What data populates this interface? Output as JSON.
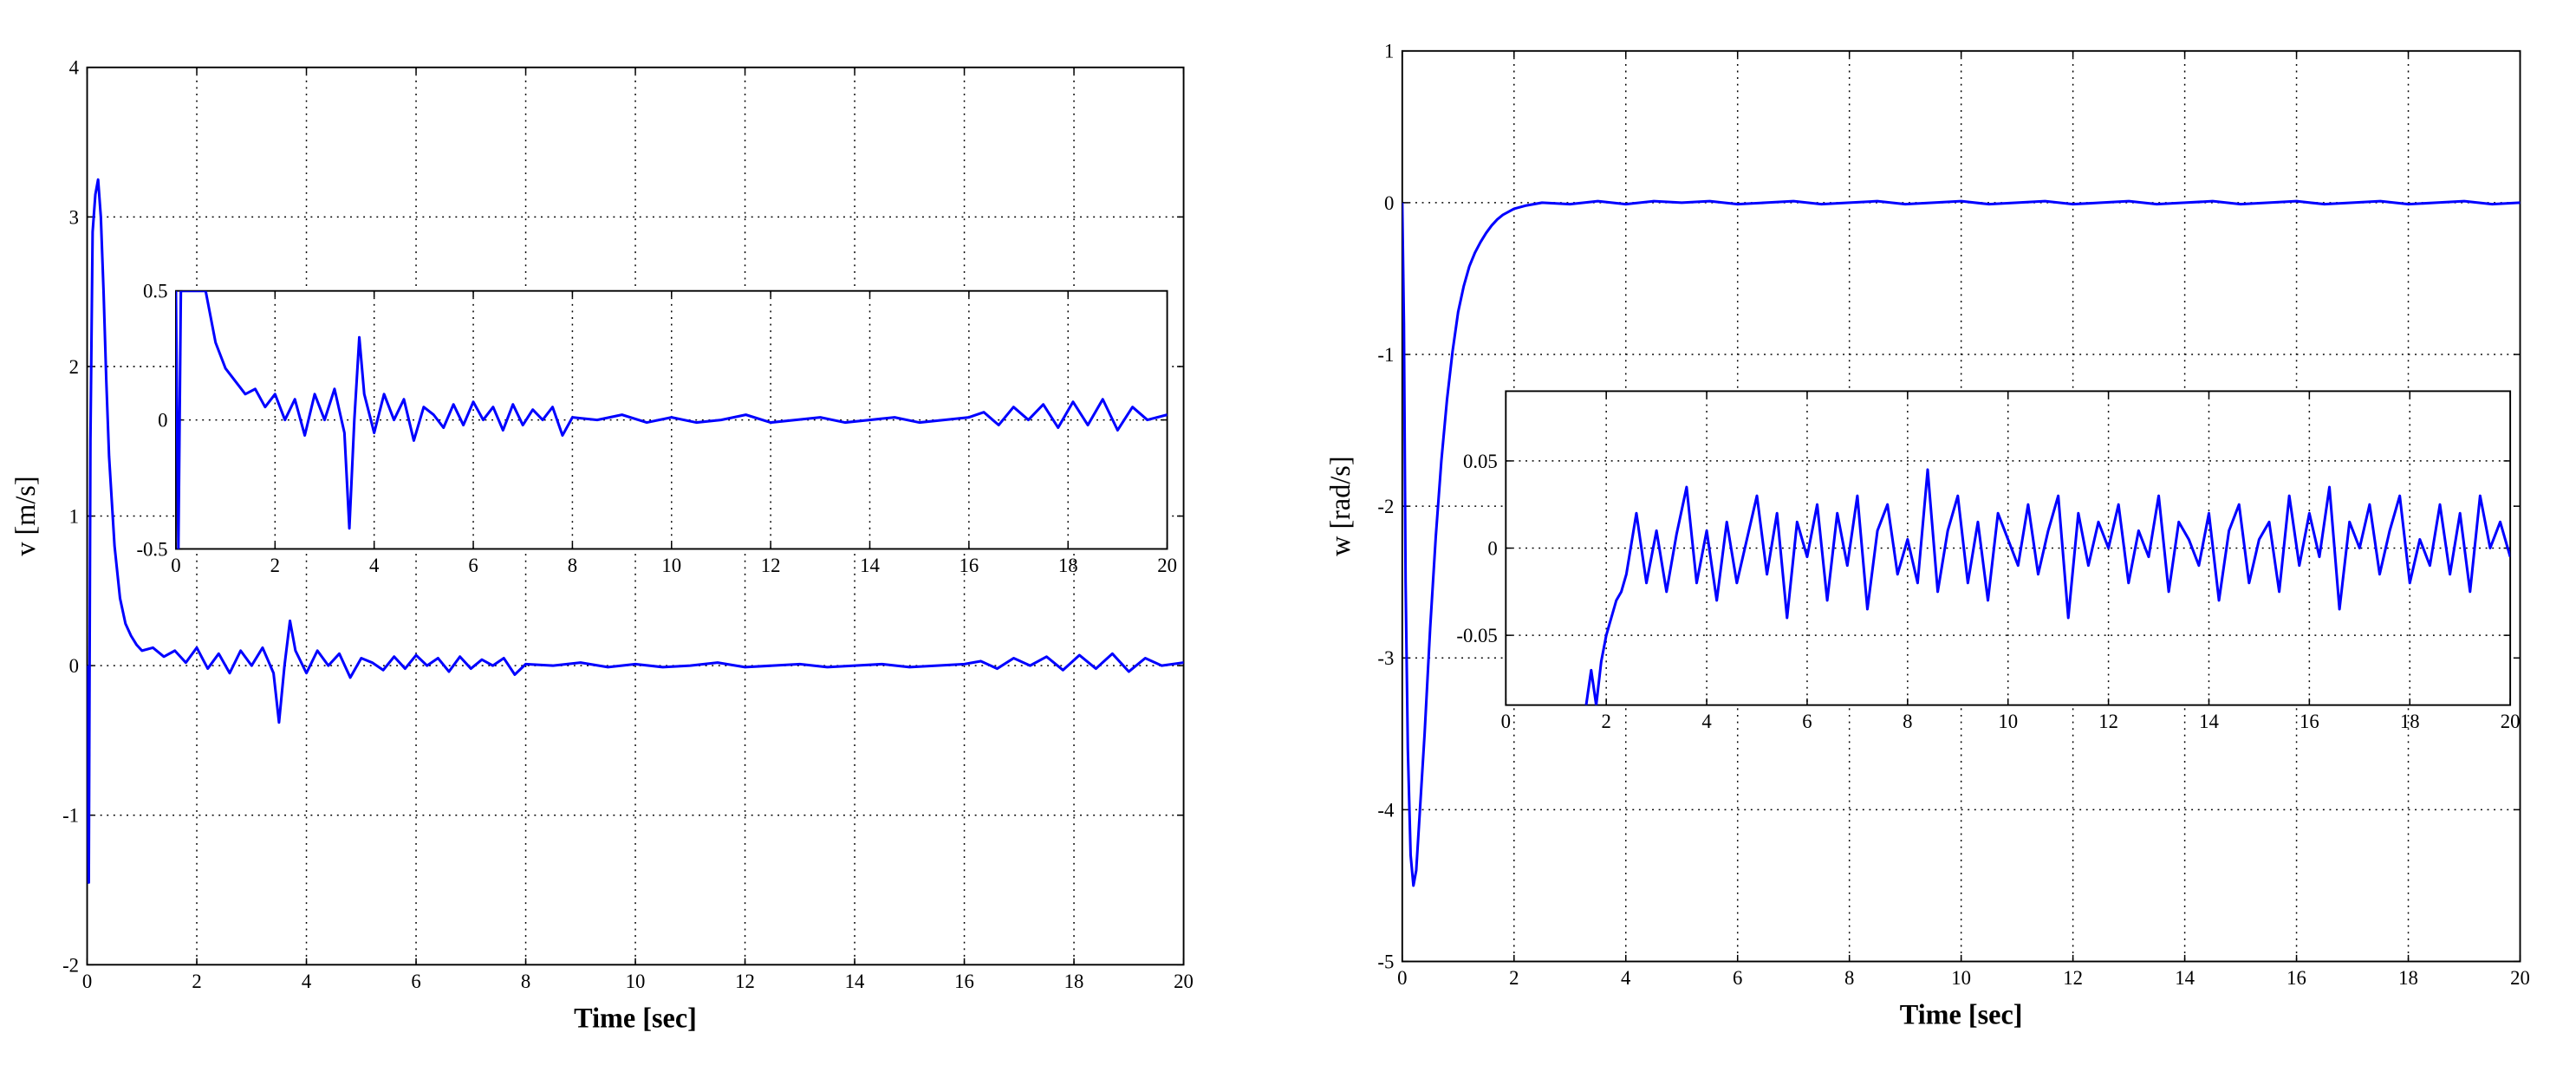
{
  "chart_data": [
    {
      "type": "line",
      "xlabel": "Time [sec]",
      "ylabel": "v [m/s]",
      "xlim": [
        0,
        20
      ],
      "ylim": [
        -2,
        4
      ],
      "xticks": [
        "0",
        "2",
        "4",
        "6",
        "8",
        "10",
        "12",
        "14",
        "16",
        "18",
        "20"
      ],
      "yticks": [
        "-2",
        "-1",
        "0",
        "1",
        "2",
        "3",
        "4"
      ],
      "grid": true,
      "line_color": "#0000ff",
      "series": [
        {
          "x": [
            0,
            0.03,
            0.06,
            0.1,
            0.15,
            0.2,
            0.25,
            0.3,
            0.35,
            0.4,
            0.5,
            0.6,
            0.7,
            0.8,
            0.9,
            1.0,
            1.2,
            1.4,
            1.6,
            1.8,
            2.0,
            2.2,
            2.4,
            2.6,
            2.8,
            3.0,
            3.2,
            3.4,
            3.5,
            3.6,
            3.7,
            3.8,
            4.0,
            4.2,
            4.4,
            4.6,
            4.8,
            5.0,
            5.2,
            5.4,
            5.6,
            5.8,
            6.0,
            6.2,
            6.4,
            6.6,
            6.8,
            7.0,
            7.2,
            7.4,
            7.6,
            7.8,
            8.0,
            8.5,
            9.0,
            9.5,
            10.0,
            10.5,
            11.0,
            11.5,
            12.0,
            12.5,
            13.0,
            13.5,
            14.0,
            14.5,
            15.0,
            15.5,
            16.0,
            16.3,
            16.6,
            16.9,
            17.2,
            17.5,
            17.8,
            18.1,
            18.4,
            18.7,
            19.0,
            19.3,
            19.6,
            20.0
          ],
          "y": [
            0.0,
            -1.45,
            1.5,
            2.9,
            3.15,
            3.25,
            3.0,
            2.5,
            1.9,
            1.4,
            0.8,
            0.45,
            0.28,
            0.2,
            0.14,
            0.1,
            0.12,
            0.06,
            0.1,
            0.02,
            0.12,
            -0.02,
            0.08,
            -0.05,
            0.1,
            0.0,
            0.12,
            -0.05,
            -0.38,
            0.0,
            0.3,
            0.1,
            -0.05,
            0.1,
            0.0,
            0.08,
            -0.08,
            0.05,
            0.02,
            -0.03,
            0.06,
            -0.02,
            0.07,
            0.0,
            0.05,
            -0.04,
            0.06,
            -0.02,
            0.04,
            0.0,
            0.05,
            -0.06,
            0.01,
            0.0,
            0.02,
            -0.01,
            0.01,
            -0.01,
            0.0,
            0.02,
            -0.01,
            0.0,
            0.01,
            -0.01,
            0.0,
            0.01,
            -0.01,
            0.0,
            0.01,
            0.03,
            -0.02,
            0.05,
            0.0,
            0.06,
            -0.03,
            0.07,
            -0.02,
            0.08,
            -0.04,
            0.05,
            0.0,
            0.02
          ]
        }
      ],
      "inset": {
        "xlim": [
          0,
          20
        ],
        "ylim": [
          -0.5,
          0.5
        ],
        "xticks": [
          "0",
          "2",
          "4",
          "6",
          "8",
          "10",
          "12",
          "14",
          "16",
          "18",
          "20"
        ],
        "yticks": [
          "-0.5",
          "0",
          "0.5"
        ],
        "grid": true,
        "x": [
          0,
          0.05,
          0.1,
          0.6,
          0.8,
          1.0,
          1.2,
          1.4,
          1.6,
          1.8,
          2.0,
          2.2,
          2.4,
          2.6,
          2.8,
          3.0,
          3.2,
          3.4,
          3.5,
          3.6,
          3.7,
          3.8,
          4.0,
          4.2,
          4.4,
          4.6,
          4.8,
          5.0,
          5.2,
          5.4,
          5.6,
          5.8,
          6.0,
          6.2,
          6.4,
          6.6,
          6.8,
          7.0,
          7.2,
          7.4,
          7.6,
          7.8,
          8.0,
          8.5,
          9.0,
          9.5,
          10.0,
          10.5,
          11.0,
          11.5,
          12.0,
          12.5,
          13.0,
          13.5,
          14.0,
          14.5,
          15.0,
          15.5,
          16.0,
          16.3,
          16.6,
          16.9,
          17.2,
          17.5,
          17.8,
          18.1,
          18.4,
          18.7,
          19.0,
          19.3,
          19.6,
          20.0
        ],
        "y": [
          0.5,
          -0.5,
          0.5,
          0.5,
          0.3,
          0.2,
          0.15,
          0.1,
          0.12,
          0.05,
          0.1,
          0.0,
          0.08,
          -0.06,
          0.1,
          0.0,
          0.12,
          -0.05,
          -0.42,
          0.0,
          0.32,
          0.1,
          -0.05,
          0.1,
          0.0,
          0.08,
          -0.08,
          0.05,
          0.02,
          -0.03,
          0.06,
          -0.02,
          0.07,
          0.0,
          0.05,
          -0.04,
          0.06,
          -0.02,
          0.04,
          0.0,
          0.05,
          -0.06,
          0.01,
          0.0,
          0.02,
          -0.01,
          0.01,
          -0.01,
          0.0,
          0.02,
          -0.01,
          0.0,
          0.01,
          -0.01,
          0.0,
          0.01,
          -0.01,
          0.0,
          0.01,
          0.03,
          -0.02,
          0.05,
          0.0,
          0.06,
          -0.03,
          0.07,
          -0.02,
          0.08,
          -0.04,
          0.05,
          0.0,
          0.02
        ]
      }
    },
    {
      "type": "line",
      "xlabel": "Time [sec]",
      "ylabel": "w [rad/s]",
      "xlim": [
        0,
        20
      ],
      "ylim": [
        -5,
        1
      ],
      "xticks": [
        "0",
        "2",
        "4",
        "6",
        "8",
        "10",
        "12",
        "14",
        "16",
        "18",
        "20"
      ],
      "yticks": [
        "-5",
        "-4",
        "-3",
        "-2",
        "-1",
        "0",
        "1"
      ],
      "grid": true,
      "line_color": "#0000ff",
      "series": [
        {
          "x": [
            0,
            0.03,
            0.06,
            0.1,
            0.15,
            0.2,
            0.25,
            0.3,
            0.4,
            0.5,
            0.6,
            0.7,
            0.8,
            0.9,
            1.0,
            1.1,
            1.2,
            1.3,
            1.4,
            1.5,
            1.6,
            1.7,
            1.8,
            1.9,
            2.0,
            2.2,
            2.5,
            3.0,
            3.5,
            4.0,
            4.5,
            5.0,
            5.5,
            6.0,
            6.5,
            7.0,
            7.5,
            8.0,
            8.5,
            9.0,
            9.5,
            10.0,
            10.5,
            11.0,
            11.5,
            12.0,
            12.5,
            13.0,
            13.5,
            14.0,
            14.5,
            15.0,
            15.5,
            16.0,
            16.5,
            17.0,
            17.5,
            18.0,
            18.5,
            19.0,
            19.5,
            20.0
          ],
          "y": [
            0.0,
            -0.8,
            -2.5,
            -3.6,
            -4.3,
            -4.5,
            -4.4,
            -4.1,
            -3.5,
            -2.8,
            -2.2,
            -1.7,
            -1.3,
            -0.98,
            -0.72,
            -0.55,
            -0.42,
            -0.33,
            -0.26,
            -0.2,
            -0.15,
            -0.11,
            -0.08,
            -0.06,
            -0.04,
            -0.02,
            0.0,
            -0.01,
            0.01,
            -0.01,
            0.01,
            0.0,
            0.01,
            -0.01,
            0.0,
            0.01,
            -0.01,
            0.0,
            0.01,
            -0.01,
            0.0,
            0.01,
            -0.01,
            0.0,
            0.01,
            -0.01,
            0.0,
            0.01,
            -0.01,
            0.0,
            0.01,
            -0.01,
            0.0,
            0.01,
            -0.01,
            0.0,
            0.01,
            -0.01,
            0.0,
            0.01,
            -0.01,
            0.0
          ]
        }
      ],
      "inset": {
        "xlim": [
          0,
          20
        ],
        "ylim": [
          -0.09,
          0.09
        ],
        "xticks": [
          "0",
          "2",
          "4",
          "6",
          "8",
          "10",
          "12",
          "14",
          "16",
          "18",
          "20"
        ],
        "yticks": [
          "-0.05",
          "0",
          "0.05"
        ],
        "grid": true,
        "x": [
          1.6,
          1.7,
          1.8,
          1.9,
          2.0,
          2.1,
          2.2,
          2.3,
          2.4,
          2.6,
          2.8,
          3.0,
          3.2,
          3.4,
          3.6,
          3.8,
          4.0,
          4.2,
          4.4,
          4.6,
          4.8,
          5.0,
          5.2,
          5.4,
          5.6,
          5.8,
          6.0,
          6.2,
          6.4,
          6.6,
          6.8,
          7.0,
          7.2,
          7.4,
          7.6,
          7.8,
          8.0,
          8.2,
          8.4,
          8.6,
          8.8,
          9.0,
          9.2,
          9.4,
          9.6,
          9.8,
          10.0,
          10.2,
          10.4,
          10.6,
          10.8,
          11.0,
          11.2,
          11.4,
          11.6,
          11.8,
          12.0,
          12.2,
          12.4,
          12.6,
          12.8,
          13.0,
          13.2,
          13.4,
          13.6,
          13.8,
          14.0,
          14.2,
          14.4,
          14.6,
          14.8,
          15.0,
          15.2,
          15.4,
          15.6,
          15.8,
          16.0,
          16.2,
          16.4,
          16.6,
          16.8,
          17.0,
          17.2,
          17.4,
          17.6,
          17.8,
          18.0,
          18.2,
          18.4,
          18.6,
          18.8,
          19.0,
          19.2,
          19.4,
          19.6,
          19.8,
          20.0
        ],
        "y": [
          -0.09,
          -0.07,
          -0.09,
          -0.065,
          -0.05,
          -0.04,
          -0.03,
          -0.025,
          -0.015,
          0.02,
          -0.02,
          0.01,
          -0.025,
          0.008,
          0.035,
          -0.02,
          0.01,
          -0.03,
          0.015,
          -0.02,
          0.005,
          0.03,
          -0.015,
          0.02,
          -0.04,
          0.015,
          -0.005,
          0.025,
          -0.03,
          0.02,
          -0.01,
          0.03,
          -0.035,
          0.01,
          0.025,
          -0.015,
          0.005,
          -0.02,
          0.045,
          -0.025,
          0.01,
          0.03,
          -0.02,
          0.015,
          -0.03,
          0.02,
          0.005,
          -0.01,
          0.025,
          -0.015,
          0.01,
          0.03,
          -0.04,
          0.02,
          -0.01,
          0.015,
          0.0,
          0.025,
          -0.02,
          0.01,
          -0.005,
          0.03,
          -0.025,
          0.015,
          0.005,
          -0.01,
          0.02,
          -0.03,
          0.01,
          0.025,
          -0.02,
          0.005,
          0.015,
          -0.025,
          0.03,
          -0.01,
          0.02,
          -0.005,
          0.035,
          -0.035,
          0.015,
          0.0,
          0.025,
          -0.015,
          0.01,
          0.03,
          -0.02,
          0.005,
          -0.01,
          0.025,
          -0.015,
          0.02,
          -0.025,
          0.03,
          0.0,
          0.015,
          -0.005
        ]
      }
    }
  ]
}
